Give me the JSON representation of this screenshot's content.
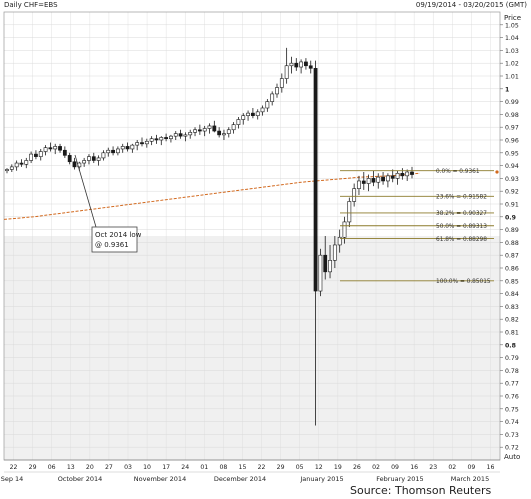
{
  "header": {
    "left": "Daily CHF=EBS",
    "right": "09/19/2014 - 03/20/2015 (GMT)"
  },
  "source": "Source: Thomson Reuters",
  "chart_data": {
    "type": "candlestick",
    "ylabel": "Price",
    "ylim": [
      0.71,
      1.06
    ],
    "yticks": [
      1.05,
      1.04,
      1.03,
      1.02,
      1.01,
      1.0,
      0.99,
      0.98,
      0.97,
      0.96,
      0.95,
      0.94,
      0.93,
      0.92,
      0.91,
      0.9,
      0.89,
      0.88,
      0.87,
      0.86,
      0.85,
      0.84,
      0.83,
      0.82,
      0.81,
      0.8,
      0.79,
      0.78,
      0.77,
      0.76,
      0.75,
      0.74,
      0.73,
      0.72
    ],
    "ytick_labels": [
      "1.05",
      "1.04",
      "1.03",
      "1.02",
      "1.01",
      "1",
      "0.99",
      "0.98",
      "0.97",
      "0.96",
      "0.95",
      "0.94",
      "0.93",
      "0.92",
      "0.91",
      "0.9",
      "0.89",
      "0.88",
      "0.87",
      "0.86",
      "0.85",
      "0.84",
      "0.83",
      "0.82",
      "0.81",
      "0.8",
      "0.79",
      "0.78",
      "0.77",
      "0.76",
      "0.75",
      "0.74",
      "0.73",
      "0.72"
    ],
    "y_bold_ticks": [
      1.0,
      0.9,
      0.8
    ],
    "xdays": [
      "22",
      "29",
      "06",
      "13",
      "20",
      "27",
      "03",
      "10",
      "17",
      "24",
      "01",
      "08",
      "15",
      "22",
      "29",
      "05",
      "12",
      "19",
      "26",
      "02",
      "09",
      "16",
      "23",
      "02",
      "09",
      "16"
    ],
    "xmonths": [
      "Sep 14",
      "October 2014",
      "November 2014",
      "December 2014",
      "January 2015",
      "February 2015",
      "March 2015"
    ],
    "corner_label": "Auto",
    "candles": [
      [
        0.936,
        0.938,
        0.934,
        0.937
      ],
      [
        0.937,
        0.941,
        0.935,
        0.939
      ],
      [
        0.939,
        0.944,
        0.936,
        0.942
      ],
      [
        0.942,
        0.945,
        0.939,
        0.941
      ],
      [
        0.941,
        0.946,
        0.938,
        0.944
      ],
      [
        0.944,
        0.951,
        0.942,
        0.949
      ],
      [
        0.949,
        0.952,
        0.945,
        0.947
      ],
      [
        0.947,
        0.953,
        0.944,
        0.951
      ],
      [
        0.951,
        0.956,
        0.948,
        0.954
      ],
      [
        0.954,
        0.958,
        0.951,
        0.953
      ],
      [
        0.953,
        0.957,
        0.949,
        0.955
      ],
      [
        0.955,
        0.957,
        0.95,
        0.952
      ],
      [
        0.952,
        0.955,
        0.946,
        0.948
      ],
      [
        0.948,
        0.95,
        0.941,
        0.943
      ],
      [
        0.943,
        0.946,
        0.937,
        0.939
      ],
      [
        0.939,
        0.943,
        0.936,
        0.942
      ],
      [
        0.942,
        0.946,
        0.939,
        0.944
      ],
      [
        0.944,
        0.949,
        0.941,
        0.947
      ],
      [
        0.947,
        0.95,
        0.942,
        0.944
      ],
      [
        0.944,
        0.948,
        0.94,
        0.946
      ],
      [
        0.946,
        0.952,
        0.944,
        0.95
      ],
      [
        0.95,
        0.954,
        0.947,
        0.952
      ],
      [
        0.952,
        0.955,
        0.948,
        0.95
      ],
      [
        0.95,
        0.955,
        0.948,
        0.953
      ],
      [
        0.953,
        0.957,
        0.95,
        0.955
      ],
      [
        0.955,
        0.958,
        0.951,
        0.953
      ],
      [
        0.953,
        0.957,
        0.95,
        0.956
      ],
      [
        0.956,
        0.96,
        0.952,
        0.958
      ],
      [
        0.958,
        0.962,
        0.955,
        0.957
      ],
      [
        0.957,
        0.961,
        0.954,
        0.959
      ],
      [
        0.959,
        0.963,
        0.956,
        0.961
      ],
      [
        0.961,
        0.964,
        0.957,
        0.96
      ],
      [
        0.96,
        0.963,
        0.956,
        0.962
      ],
      [
        0.962,
        0.965,
        0.959,
        0.961
      ],
      [
        0.961,
        0.964,
        0.958,
        0.963
      ],
      [
        0.963,
        0.967,
        0.96,
        0.965
      ],
      [
        0.965,
        0.968,
        0.961,
        0.963
      ],
      [
        0.963,
        0.966,
        0.959,
        0.964
      ],
      [
        0.964,
        0.968,
        0.961,
        0.966
      ],
      [
        0.966,
        0.97,
        0.963,
        0.968
      ],
      [
        0.968,
        0.972,
        0.964,
        0.967
      ],
      [
        0.967,
        0.971,
        0.963,
        0.969
      ],
      [
        0.969,
        0.973,
        0.965,
        0.971
      ],
      [
        0.971,
        0.975,
        0.966,
        0.967
      ],
      [
        0.967,
        0.97,
        0.962,
        0.964
      ],
      [
        0.964,
        0.968,
        0.96,
        0.965
      ],
      [
        0.965,
        0.97,
        0.962,
        0.968
      ],
      [
        0.968,
        0.974,
        0.965,
        0.972
      ],
      [
        0.972,
        0.978,
        0.969,
        0.976
      ],
      [
        0.976,
        0.981,
        0.972,
        0.979
      ],
      [
        0.979,
        0.983,
        0.975,
        0.981
      ],
      [
        0.981,
        0.985,
        0.977,
        0.979
      ],
      [
        0.979,
        0.984,
        0.976,
        0.982
      ],
      [
        0.982,
        0.987,
        0.979,
        0.985
      ],
      [
        0.985,
        0.992,
        0.982,
        0.99
      ],
      [
        0.99,
        0.998,
        0.987,
        0.996
      ],
      [
        0.996,
        1.004,
        0.993,
        1.001
      ],
      [
        1.001,
        1.012,
        0.997,
        1.008
      ],
      [
        1.008,
        1.032,
        1.004,
        1.018
      ],
      [
        1.018,
        1.025,
        1.012,
        1.02
      ],
      [
        1.02,
        1.024,
        1.014,
        1.017
      ],
      [
        1.017,
        1.023,
        1.012,
        1.021
      ],
      [
        1.021,
        1.024,
        1.015,
        1.018
      ],
      [
        1.018,
        1.022,
        1.012,
        1.016
      ],
      [
        1.016,
        1.022,
        0.737,
        0.842
      ],
      [
        0.842,
        0.875,
        0.838,
        0.87
      ],
      [
        0.87,
        0.885,
        0.851,
        0.857
      ],
      [
        0.857,
        0.878,
        0.852,
        0.866
      ],
      [
        0.866,
        0.885,
        0.86,
        0.878
      ],
      [
        0.878,
        0.89,
        0.872,
        0.884
      ],
      [
        0.884,
        0.9,
        0.879,
        0.896
      ],
      [
        0.896,
        0.915,
        0.892,
        0.912
      ],
      [
        0.912,
        0.926,
        0.908,
        0.922
      ],
      [
        0.922,
        0.932,
        0.917,
        0.928
      ],
      [
        0.928,
        0.935,
        0.921,
        0.926
      ],
      [
        0.926,
        0.933,
        0.92,
        0.93
      ],
      [
        0.93,
        0.936,
        0.924,
        0.927
      ],
      [
        0.927,
        0.934,
        0.922,
        0.931
      ],
      [
        0.931,
        0.935,
        0.925,
        0.928
      ],
      [
        0.928,
        0.934,
        0.923,
        0.932
      ],
      [
        0.932,
        0.937,
        0.927,
        0.93
      ],
      [
        0.93,
        0.936,
        0.925,
        0.934
      ],
      [
        0.934,
        0.938,
        0.929,
        0.932
      ],
      [
        0.932,
        0.937,
        0.928,
        0.935
      ],
      [
        0.935,
        0.939,
        0.93,
        0.933
      ]
    ],
    "moving_average": [
      0.898,
      0.9,
      0.903,
      0.906,
      0.909,
      0.912,
      0.915,
      0.918,
      0.921,
      0.924,
      0.927,
      0.929,
      0.931,
      0.932,
      0.934
    ],
    "fib_levels": [
      {
        "label": "0.0% = 0.9361",
        "value": 0.936
      },
      {
        "label": "23.6% = 0.91582",
        "value": 0.916
      },
      {
        "label": "38.2% = 0.90327",
        "value": 0.903
      },
      {
        "label": "50.0% = 0.89313",
        "value": 0.893
      },
      {
        "label": "61.8% = 0.88298",
        "value": 0.883
      },
      {
        "label": "100.0% = 0.85015",
        "value": 0.85
      }
    ],
    "annotation": {
      "line1": "Oct 2014 low",
      "line2": "@ 0.9361"
    },
    "shaded_below": 0.885
  },
  "colors": {
    "grid": "#d9d9d9",
    "shade": "#f0f0f0",
    "candle": "#1a1a1a",
    "ma": "#d2691e",
    "fib": "#8b7a2a",
    "axis_text": "#222222"
  }
}
